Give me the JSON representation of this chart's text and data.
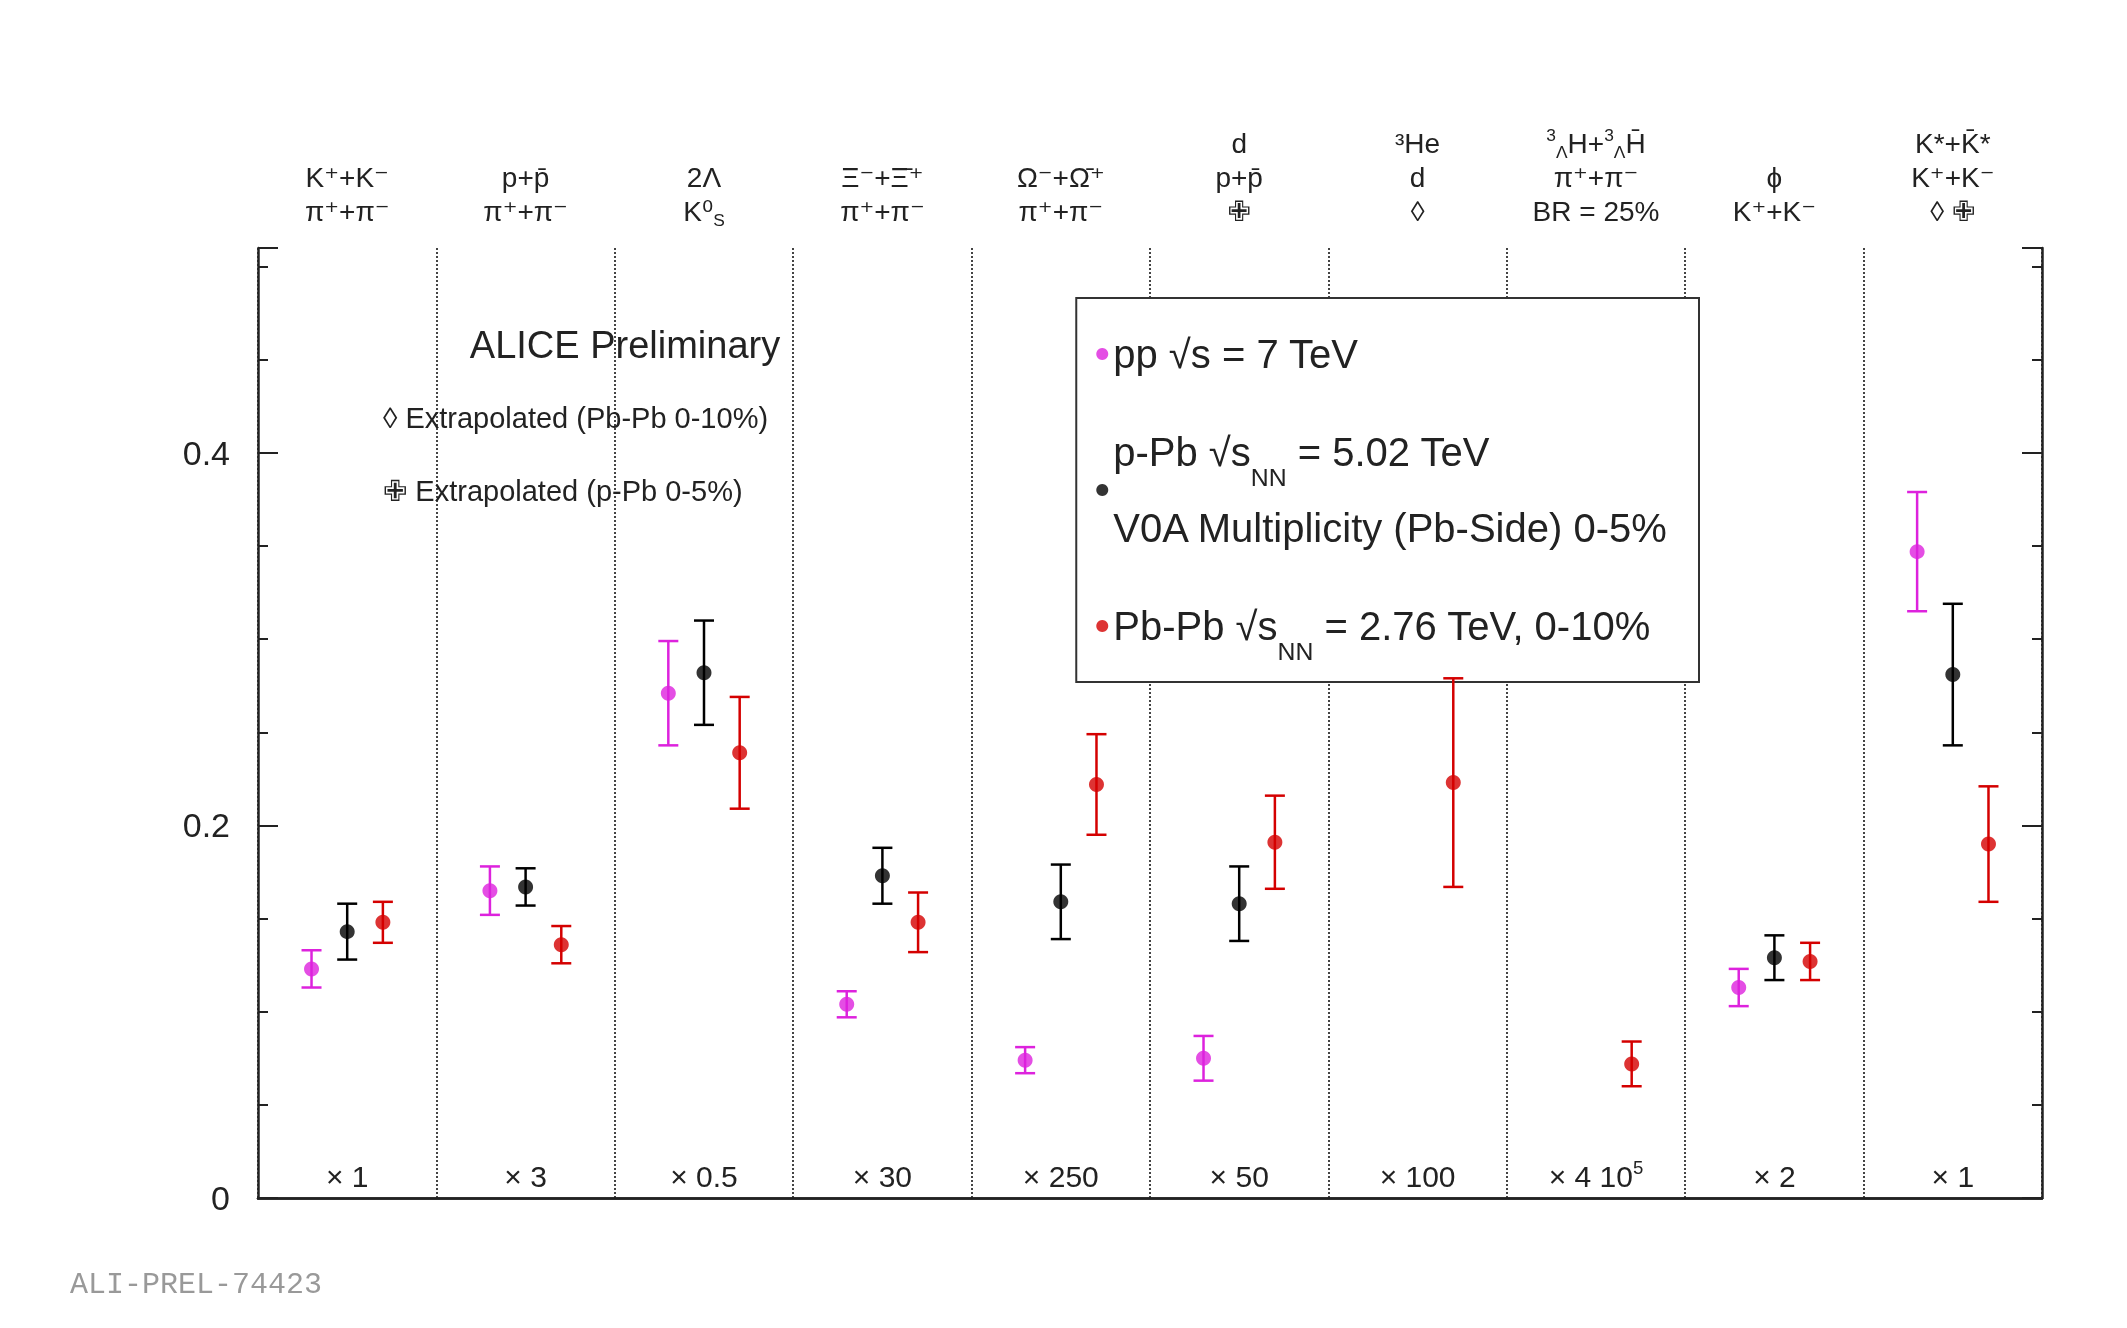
{
  "chart_data": {
    "type": "scatter",
    "categories": [
      "K⁺+K⁻\nπ⁺+π⁻",
      "p+p̄\nπ⁺+π⁻",
      "2Λ\nK⁰$_{S}$",
      "Ξ⁻+Ξ̄⁺\nπ⁺+π⁻",
      "Ω⁻+Ω̄⁺\nπ⁺+π⁻",
      "d\np+p̄\n✙",
      "³He\nd\n◊",
      "$^{3}$$_{Λ}$H+$^{3}$$_{Λ}$H̄\nπ⁺+π⁻\nBR = 25%",
      "ϕ\nK⁺+K⁻",
      "K*+K̄*\nK⁺+K⁻\n◊ ✙"
    ],
    "series": [
      {
        "name": "pp √s = 7 TeV",
        "color": "#dd22dd",
        "values": [
          0.123,
          0.165,
          0.271,
          0.104,
          0.074,
          0.075,
          null,
          null,
          0.113,
          0.347
        ],
        "errors": [
          0.01,
          0.013,
          0.028,
          0.007,
          0.007,
          0.012,
          null,
          null,
          0.01,
          0.032
        ]
      },
      {
        "name": "p-Pb √s$_{NN}$ = 5.02 TeV\nV0A Multiplicity (Pb-Side) 0-5%",
        "color": "#000000",
        "values": [
          0.143,
          0.167,
          0.282,
          0.173,
          0.159,
          0.158,
          null,
          null,
          0.129,
          0.281
        ],
        "errors": [
          0.015,
          0.01,
          0.028,
          0.015,
          0.02,
          0.02,
          null,
          null,
          0.012,
          0.038
        ]
      },
      {
        "name": "Pb-Pb √s$_{NN}$ = 2.76 TeV, 0-10%",
        "color": "#d40000",
        "values": [
          0.148,
          0.136,
          0.239,
          0.148,
          0.222,
          0.191,
          0.223,
          0.072,
          0.127,
          0.19
        ],
        "errors": [
          0.011,
          0.01,
          0.03,
          0.016,
          0.027,
          0.025,
          0.056,
          0.012,
          0.01,
          0.031
        ]
      }
    ],
    "ylim": [
      0,
      0.51
    ],
    "yticks": [
      0,
      0.2,
      0.4
    ],
    "grid": "x",
    "legend": "top right",
    "marker": "circle",
    "annotations": [
      "ALICE Preliminary",
      "◊ Extrapolated (Pb-Pb 0-10%)",
      "✙ Extrapolated (p-Pb 0-5%)",
      "ALI-PREL-74423",
      "× 1",
      "× 3",
      "× 0.5",
      "× 30",
      "× 250",
      "× 50",
      "× 100",
      "× 4 10$^{5}$",
      "× 2",
      "× 1"
    ]
  }
}
